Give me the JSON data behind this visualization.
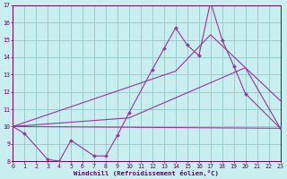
{
  "xlabel": "Windchill (Refroidissement éolien,°C)",
  "bg_color": "#c8eef0",
  "line_color": "#993399",
  "grid_color": "#99cccc",
  "xmin": 0,
  "xmax": 23,
  "ymin": 8,
  "ymax": 17,
  "yticks": [
    8,
    9,
    10,
    11,
    12,
    13,
    14,
    15,
    16,
    17
  ],
  "xticks": [
    0,
    1,
    2,
    3,
    4,
    5,
    6,
    7,
    8,
    9,
    10,
    11,
    12,
    13,
    14,
    15,
    16,
    17,
    18,
    19,
    20,
    21,
    22,
    23
  ],
  "main_x": [
    0,
    1,
    3,
    4,
    5,
    7,
    8,
    9,
    10,
    12,
    13,
    14,
    15,
    16,
    17,
    18,
    19,
    20,
    23
  ],
  "main_y": [
    10.0,
    9.6,
    8.1,
    8.0,
    9.2,
    8.3,
    8.3,
    9.5,
    10.8,
    13.3,
    14.5,
    15.7,
    14.7,
    14.1,
    17.2,
    15.0,
    13.5,
    11.9,
    9.9
  ],
  "trend1_x": [
    0,
    23
  ],
  "trend1_y": [
    10.0,
    9.9
  ],
  "trend2_x": [
    0,
    10,
    20,
    23
  ],
  "trend2_y": [
    10.0,
    10.5,
    13.4,
    9.9
  ],
  "trend3_x": [
    0,
    14,
    17,
    20,
    23
  ],
  "trend3_y": [
    10.0,
    13.2,
    15.3,
    13.4,
    11.5
  ]
}
